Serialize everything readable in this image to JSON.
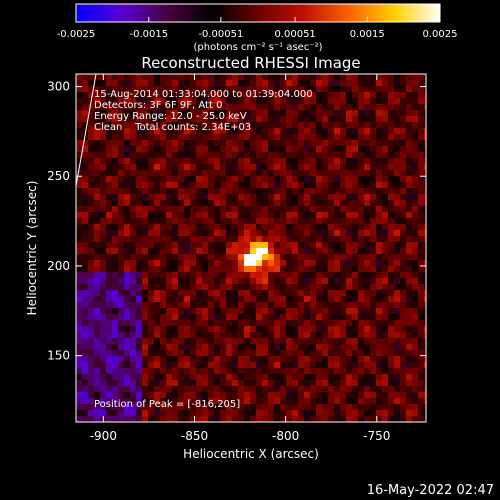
{
  "chart_data": {
    "type": "heatmap",
    "title": "Reconstructed RHESSI Image",
    "xlabel": "Heliocentric X (arcsec)",
    "ylabel": "Heliocentric Y (arcsec)",
    "xlim": [
      -915,
      -723
    ],
    "ylim": [
      113,
      307
    ],
    "x_ticks": [
      -900,
      -850,
      -800,
      -750
    ],
    "y_ticks": [
      150,
      200,
      250,
      300
    ],
    "colorbar": {
      "ticks": [
        "-0.0025",
        "-0.0015",
        "-0.00051",
        "0.00051",
        "0.0015",
        "0.0025"
      ],
      "tick_values": [
        -0.0025,
        -0.0015,
        -0.00051,
        0.00051,
        0.0015,
        0.0025
      ],
      "range": [
        -0.0025,
        0.0025
      ],
      "unit_label": "(photons cm⁻² s⁻¹ asec⁻²)",
      "colormap": [
        "#0000ff",
        "#5a00d0",
        "#4a0040",
        "#000000",
        "#6a0000",
        "#c01000",
        "#ff6000",
        "#ffd000",
        "#ffffff"
      ]
    },
    "info_lines": [
      "15-Aug-2014 01:33:04.000 to 01:39:04.000",
      "Detectors: 3F 6F 9F, Att 0",
      "Energy Range: 12.0 - 25.0 keV",
      "Clean    Total counts: 2.34E+03"
    ],
    "peak_label": "Position of Peak = [-816,205]",
    "peak": {
      "x": -816,
      "y": 205
    },
    "limb_visible": true
  },
  "footer": {
    "timestamp": "16-May-2022 02:47"
  }
}
